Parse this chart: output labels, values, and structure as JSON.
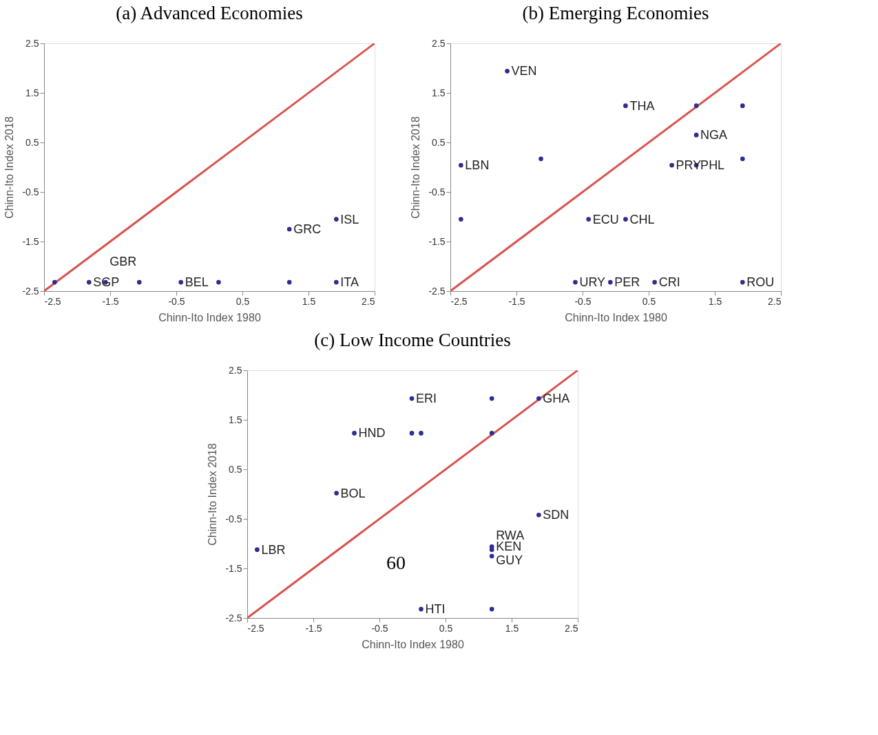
{
  "chart_data": [
    {
      "type": "scatter",
      "title": "(a) Advanced Economies",
      "xlabel": "Chinn-Ito Index 1980",
      "ylabel": "Chinn-Ito Index 2018",
      "xlim": [
        -2.5,
        2.5
      ],
      "ylim": [
        -2.5,
        2.5
      ],
      "xticks": [
        -2.5,
        -1.5,
        -0.5,
        0.5,
        1.5,
        2.5
      ],
      "yticks": [
        -2.5,
        -1.5,
        -0.5,
        0.5,
        1.5,
        2.5
      ],
      "grid": false,
      "series": [
        {
          "type": "line",
          "color": "#d9534f",
          "line_style": "solid",
          "x": [
            -2.5,
            2.5
          ],
          "values": [
            -2.5,
            2.5
          ]
        },
        {
          "type": "scatter",
          "color": "#2b2f8f",
          "marker": "circle",
          "x": [
            -2.34,
            -1.82,
            -1.57,
            -1.06,
            -0.43,
            0.14,
            1.21,
            1.92,
            1.92,
            1.21
          ],
          "values": [
            -2.32,
            -2.32,
            -2.32,
            -2.32,
            -2.32,
            -2.32,
            -2.32,
            -2.32,
            -1.05,
            -1.25
          ]
        }
      ],
      "annotations": [
        {
          "text": "SGP",
          "x": -1.82,
          "y": -2.32
        },
        {
          "text": "GBR",
          "x": -1.57,
          "y": -2.32
        },
        {
          "text": "BEL",
          "x": -0.43,
          "y": -2.32
        },
        {
          "text": "ITA",
          "x": 1.92,
          "y": -2.32
        },
        {
          "text": "ISL",
          "x": 1.92,
          "y": -1.05
        },
        {
          "text": "GRC",
          "x": 1.21,
          "y": -1.25
        }
      ]
    },
    {
      "type": "scatter",
      "title": "(b) Emerging Economies",
      "xlabel": "Chinn-Ito Index 1980",
      "ylabel": "Chinn-Ito Index 2018",
      "xlim": [
        -2.5,
        2.5
      ],
      "ylim": [
        -2.5,
        2.5
      ],
      "xticks": [
        -2.5,
        -1.5,
        -0.5,
        0.5,
        1.5,
        2.5
      ],
      "yticks": [
        -2.5,
        -1.5,
        -0.5,
        0.5,
        1.5,
        2.5
      ],
      "grid": false,
      "series": [
        {
          "type": "line",
          "color": "#d9534f",
          "line_style": "solid",
          "x": [
            -2.5,
            2.5
          ],
          "values": [
            -2.5,
            2.5
          ]
        },
        {
          "type": "scatter",
          "color": "#2b2f8f",
          "marker": "circle",
          "x": [
            -1.64,
            0.15,
            1.22,
            1.92,
            1.22,
            -1.13,
            -2.34,
            0.85,
            1.22,
            1.92,
            -2.34,
            -0.41,
            0.15,
            -0.61,
            -0.08,
            0.59,
            1.92
          ],
          "values": [
            1.94,
            1.24,
            1.24,
            1.24,
            0.65,
            0.17,
            0.04,
            0.04,
            0.04,
            0.17,
            -1.05,
            -1.05,
            -1.05,
            -2.32,
            -2.32,
            -2.32,
            -2.32
          ]
        }
      ],
      "annotations": [
        {
          "text": "VEN",
          "x": -1.64,
          "y": 1.94
        },
        {
          "text": "THA",
          "x": 0.15,
          "y": 1.24
        },
        {
          "text": "NGA",
          "x": 1.22,
          "y": 0.65
        },
        {
          "text": "LBN",
          "x": -2.34,
          "y": 0.04
        },
        {
          "text": "PRY",
          "x": 0.85,
          "y": 0.04
        },
        {
          "text": "PHL",
          "x": 1.22,
          "y": 0.04
        },
        {
          "text": "ECU",
          "x": -0.41,
          "y": -1.05
        },
        {
          "text": "CHL",
          "x": 0.15,
          "y": -1.05
        },
        {
          "text": "URY",
          "x": -0.61,
          "y": -2.32
        },
        {
          "text": "PER",
          "x": -0.08,
          "y": -2.32
        },
        {
          "text": "CRI",
          "x": 0.59,
          "y": -2.32
        },
        {
          "text": "ROU",
          "x": 1.92,
          "y": -2.32
        }
      ]
    },
    {
      "type": "scatter",
      "title": "(c) Low Income Countries",
      "xlabel": "Chinn-Ito Index 1980",
      "ylabel": "Chinn-Ito Index 2018",
      "xlim": [
        -2.5,
        2.5
      ],
      "ylim": [
        -2.5,
        2.5
      ],
      "xticks": [
        -2.5,
        -1.5,
        -0.5,
        0.5,
        1.5,
        2.5
      ],
      "yticks": [
        -2.5,
        -1.5,
        -0.5,
        0.5,
        1.5,
        2.5
      ],
      "grid": false,
      "series": [
        {
          "type": "line",
          "color": "#d9534f",
          "line_style": "solid",
          "x": [
            -2.5,
            2.5
          ],
          "values": [
            -2.5,
            2.5
          ]
        },
        {
          "type": "scatter",
          "color": "#2b2f8f",
          "marker": "circle",
          "x": [
            -0.01,
            1.2,
            1.91,
            -0.88,
            -0.01,
            0.13,
            1.2,
            -1.15,
            1.91,
            -2.35,
            1.2,
            1.2,
            1.2,
            0.13,
            1.2
          ],
          "values": [
            1.93,
            1.93,
            1.93,
            1.23,
            1.23,
            1.23,
            1.23,
            0.02,
            -0.42,
            -1.12,
            -1.06,
            -1.12,
            -1.25,
            -2.32,
            -2.32
          ]
        }
      ],
      "annotations": [
        {
          "text": "ERI",
          "x": -0.01,
          "y": 1.93
        },
        {
          "text": "GHA",
          "x": 1.91,
          "y": 1.93
        },
        {
          "text": "HND",
          "x": -0.88,
          "y": 1.23
        },
        {
          "text": "BOL",
          "x": -1.15,
          "y": 0.02
        },
        {
          "text": "SDN",
          "x": 1.91,
          "y": -0.42
        },
        {
          "text": "LBR",
          "x": -2.35,
          "y": -1.12
        },
        {
          "text": "KEN",
          "x": 1.2,
          "y": -1.06
        },
        {
          "text": "GUY",
          "x": 1.2,
          "y": -1.12
        },
        {
          "text": "RWA",
          "x": 1.2,
          "y": -1.25
        },
        {
          "text": "HTI",
          "x": 0.13,
          "y": -2.32
        },
        "60"
      ]
    }
  ]
}
